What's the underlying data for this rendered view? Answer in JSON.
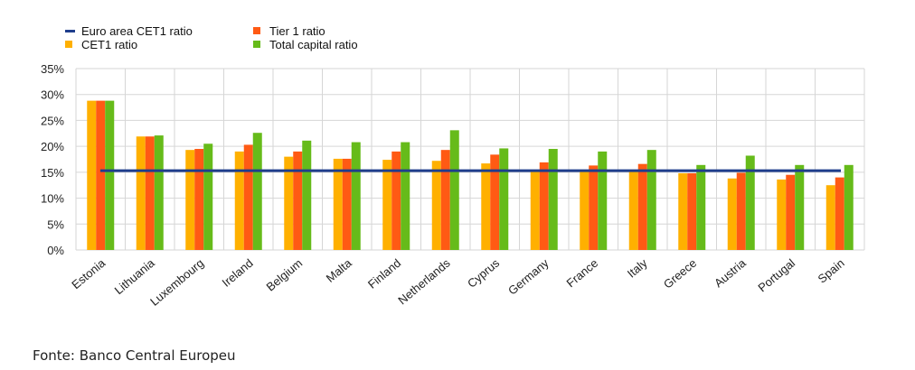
{
  "chart_data": {
    "type": "bar",
    "categories": [
      "Estonia",
      "Lithuania",
      "Luxembourg",
      "Ireland",
      "Belgium",
      "Malta",
      "Finland",
      "Netherlands",
      "Cyprus",
      "Germany",
      "France",
      "Italy",
      "Greece",
      "Austria",
      "Portugal",
      "Spain"
    ],
    "series": [
      {
        "name": "CET1  ratio",
        "color": "#FFB000",
        "values": [
          28.8,
          21.9,
          19.3,
          19.0,
          18.0,
          17.6,
          17.4,
          17.2,
          16.7,
          15.1,
          15.1,
          15.1,
          14.8,
          13.8,
          13.6,
          12.5
        ]
      },
      {
        "name": "Tier 1 ratio",
        "color": "#FF5A14",
        "values": [
          28.8,
          21.9,
          19.5,
          20.3,
          19.0,
          17.6,
          19.0,
          19.3,
          18.4,
          16.9,
          16.3,
          16.6,
          14.8,
          14.9,
          14.5,
          14.0
        ]
      },
      {
        "name": "Total capital ratio",
        "color": "#66BB1A",
        "values": [
          28.8,
          22.1,
          20.5,
          22.6,
          21.1,
          20.8,
          20.8,
          23.1,
          19.6,
          19.5,
          19.0,
          19.3,
          16.4,
          18.2,
          16.4,
          16.4
        ]
      }
    ],
    "line": {
      "name": "Euro area CET1  ratio",
      "color": "#1F3E8C",
      "value": 15.3
    },
    "yticks": [
      "0%",
      "5%",
      "10%",
      "15%",
      "20%",
      "25%",
      "30%",
      "35%"
    ],
    "ylim": [
      0,
      35
    ],
    "grid": true,
    "legend_position": "top-left"
  },
  "source": "Fonte: Banco Central Europeu"
}
